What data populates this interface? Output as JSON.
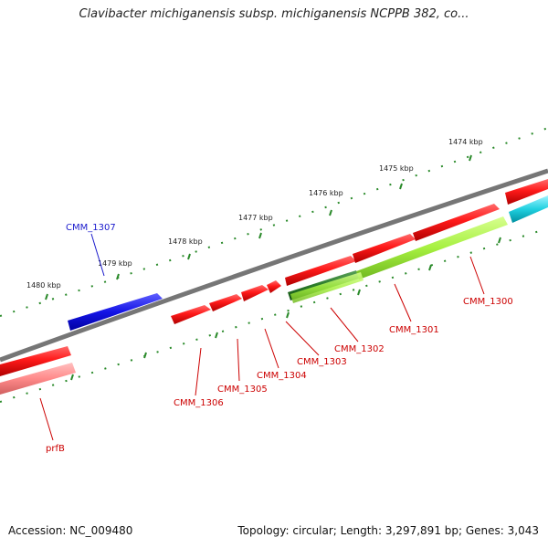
{
  "title": "Clavibacter michiganensis subsp. michiganensis NCPPB 382, co...",
  "footer": {
    "accession": "Accession: NC_009480",
    "summary": "Topology: circular; Length: 3,297,891 bp; Genes: 3,043"
  },
  "kbp_labels": [
    "1474 kbp",
    "1475 kbp",
    "1476 kbp",
    "1477 kbp",
    "1478 kbp",
    "1479 kbp",
    "1480 kbp"
  ],
  "gene_labels": [
    "CMM_1307",
    "CMM_1300",
    "CMM_1301",
    "CMM_1302",
    "CMM_1303",
    "CMM_1304",
    "CMM_1305",
    "CMM_1306",
    "prfB"
  ],
  "colors": {
    "forward_cds": "#ff0000",
    "reverse_cds": "#1010e0",
    "rna_track": "#90ee30",
    "cyan_feature": "#00c8d8",
    "backbone": "#777777",
    "ticks": "#2a8a2a",
    "label_red": "#cc0000",
    "label_blue": "#1a1acc"
  }
}
